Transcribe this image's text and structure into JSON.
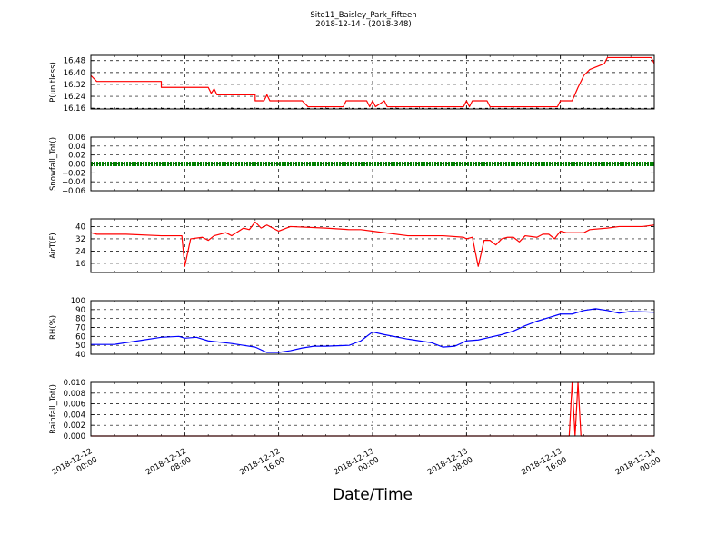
{
  "title": "Site11_Baisley_Park_Fifteen",
  "subtitle": "2018-12-14 - (2018-348)",
  "xlabel": "Date/Time",
  "x_ticks": [
    {
      "line1": "2018-12-12",
      "line2": "00:00",
      "hours": 0
    },
    {
      "line1": "2018-12-12",
      "line2": "08:00",
      "hours": 8
    },
    {
      "line1": "2018-12-12",
      "line2": "16:00",
      "hours": 16
    },
    {
      "line1": "2018-12-13",
      "line2": "00:00",
      "hours": 24
    },
    {
      "line1": "2018-12-13",
      "line2": "08:00",
      "hours": 32
    },
    {
      "line1": "2018-12-13",
      "line2": "16:00",
      "hours": 40
    },
    {
      "line1": "2018-12-14",
      "line2": "00:00",
      "hours": 48
    }
  ],
  "chart_data": [
    {
      "type": "line",
      "ylabel": "P(unitless)",
      "ylim": [
        16.155,
        16.515
      ],
      "yticks": [
        "16.16",
        "16.24",
        "16.32",
        "16.40",
        "16.48"
      ],
      "color": "#ff0000",
      "grid": true,
      "x": [
        "2018-12-12 00:00",
        "2018-12-12 00:30",
        "2018-12-12 01:00",
        "2018-12-12 06:00",
        "2018-12-12 06:00",
        "2018-12-12 10:00",
        "2018-12-12 10:15",
        "2018-12-12 10:30",
        "2018-12-12 10:45",
        "2018-12-12 14:00",
        "2018-12-12 14:00",
        "2018-12-12 14:45",
        "2018-12-12 15:00",
        "2018-12-12 15:15",
        "2018-12-12 18:00",
        "2018-12-12 18:30",
        "2018-12-12 21:30",
        "2018-12-12 21:45",
        "2018-12-12 23:30",
        "2018-12-12 23:45",
        "2018-12-13 00:00",
        "2018-12-13 00:15",
        "2018-12-13 01:00",
        "2018-12-13 01:15",
        "2018-12-13 01:30",
        "2018-12-13 07:45",
        "2018-12-13 08:00",
        "2018-12-13 08:15",
        "2018-12-13 08:30",
        "2018-12-13 09:45",
        "2018-12-13 10:00",
        "2018-12-13 15:45",
        "2018-12-13 16:00",
        "2018-12-13 17:00",
        "2018-12-13 17:30",
        "2018-12-13 18:00",
        "2018-12-13 18:30",
        "2018-12-13 19:45",
        "2018-12-13 20:00",
        "2018-12-13 23:00",
        "2018-12-13 23:45",
        "2018-12-14 00:00"
      ],
      "y": [
        16.38,
        16.34,
        16.34,
        16.34,
        16.3,
        16.3,
        16.26,
        16.29,
        16.25,
        16.25,
        16.21,
        16.21,
        16.25,
        16.21,
        16.21,
        16.17,
        16.17,
        16.21,
        16.21,
        16.17,
        16.21,
        16.17,
        16.21,
        16.17,
        16.17,
        16.17,
        16.21,
        16.17,
        16.21,
        16.21,
        16.17,
        16.17,
        16.21,
        16.21,
        16.3,
        16.38,
        16.42,
        16.46,
        16.5,
        16.5,
        16.5,
        16.46
      ]
    },
    {
      "type": "line",
      "ylabel": "Snowfall_Tot()",
      "ylim": [
        -0.06,
        0.06
      ],
      "yticks": [
        "−0.06",
        "−0.04",
        "−0.02",
        "0.00",
        "0.02",
        "0.04",
        "0.06"
      ],
      "color": "#008000",
      "grid": true,
      "x": [
        "2018-12-12 00:00",
        "2018-12-14 00:00"
      ],
      "y": [
        0.0,
        0.0
      ]
    },
    {
      "type": "line",
      "ylabel": "AirT(F)",
      "ylim": [
        10,
        45
      ],
      "yticks": [
        "16",
        "24",
        "32",
        "40"
      ],
      "color": "#ff0000",
      "grid": true,
      "x": [
        "2018-12-12 00:00",
        "2018-12-12 00:30",
        "2018-12-12 03:00",
        "2018-12-12 06:00",
        "2018-12-12 07:45",
        "2018-12-12 08:00",
        "2018-12-12 08:30",
        "2018-12-12 09:30",
        "2018-12-12 10:00",
        "2018-12-12 10:30",
        "2018-12-12 11:30",
        "2018-12-12 12:00",
        "2018-12-12 13:00",
        "2018-12-12 13:30",
        "2018-12-12 14:00",
        "2018-12-12 14:30",
        "2018-12-12 15:00",
        "2018-12-12 16:00",
        "2018-12-12 17:00",
        "2018-12-12 20:00",
        "2018-12-12 22:00",
        "2018-12-12 23:00",
        "2018-12-13 00:00",
        "2018-12-13 03:00",
        "2018-12-13 06:00",
        "2018-12-13 07:45",
        "2018-12-13 08:00",
        "2018-12-13 08:30",
        "2018-12-13 09:00",
        "2018-12-13 09:30",
        "2018-12-13 10:00",
        "2018-12-13 10:30",
        "2018-12-13 11:00",
        "2018-12-13 11:30",
        "2018-12-13 12:00",
        "2018-12-13 12:30",
        "2018-12-13 13:00",
        "2018-12-13 14:00",
        "2018-12-13 14:30",
        "2018-12-13 15:00",
        "2018-12-13 15:30",
        "2018-12-13 16:00",
        "2018-12-13 16:30",
        "2018-12-13 17:00",
        "2018-12-13 18:00",
        "2018-12-13 18:30",
        "2018-12-13 20:00",
        "2018-12-13 21:00",
        "2018-12-13 22:00",
        "2018-12-13 23:00",
        "2018-12-14 00:00"
      ],
      "y": [
        36,
        35,
        35,
        34,
        34,
        14,
        32,
        33,
        31,
        34,
        36,
        34,
        39,
        38,
        43,
        39,
        41,
        37,
        40,
        39,
        38,
        38,
        37,
        34,
        34,
        33,
        32,
        33,
        14,
        31,
        31,
        28,
        32,
        33,
        33,
        30,
        34,
        33,
        35,
        35,
        32,
        37,
        36,
        36,
        36,
        38,
        39,
        40,
        40,
        40,
        41
      ]
    },
    {
      "type": "line",
      "ylabel": "RH(%)",
      "ylim": [
        40,
        100
      ],
      "yticks": [
        "40",
        "50",
        "60",
        "70",
        "80",
        "90",
        "100"
      ],
      "color": "#0000ff",
      "grid": true,
      "x": [
        "2018-12-12 00:00",
        "2018-12-12 02:00",
        "2018-12-12 04:00",
        "2018-12-12 06:00",
        "2018-12-12 07:30",
        "2018-12-12 08:00",
        "2018-12-12 09:00",
        "2018-12-12 10:00",
        "2018-12-12 12:00",
        "2018-12-12 13:00",
        "2018-12-12 14:00",
        "2018-12-12 15:00",
        "2018-12-12 16:00",
        "2018-12-12 17:00",
        "2018-12-12 18:00",
        "2018-12-12 19:00",
        "2018-12-12 20:00",
        "2018-12-12 22:00",
        "2018-12-12 23:00",
        "2018-12-13 00:00",
        "2018-12-13 01:00",
        "2018-12-13 03:00",
        "2018-12-13 05:00",
        "2018-12-13 06:00",
        "2018-12-13 07:00",
        "2018-12-13 08:00",
        "2018-12-13 09:00",
        "2018-12-13 10:00",
        "2018-12-13 11:00",
        "2018-12-13 12:00",
        "2018-12-13 13:00",
        "2018-12-13 14:00",
        "2018-12-13 15:00",
        "2018-12-13 16:00",
        "2018-12-13 17:00",
        "2018-12-13 18:00",
        "2018-12-13 19:00",
        "2018-12-13 20:00",
        "2018-12-13 21:00",
        "2018-12-13 22:00",
        "2018-12-14 00:00"
      ],
      "y": [
        51,
        51,
        55,
        59,
        60,
        58,
        59,
        55,
        52,
        50,
        48,
        42,
        42,
        44,
        47,
        49,
        49,
        50,
        55,
        65,
        62,
        57,
        53,
        48,
        49,
        55,
        56,
        59,
        62,
        66,
        72,
        77,
        81,
        85,
        85,
        89,
        91,
        89,
        86,
        88,
        87
      ]
    },
    {
      "type": "line",
      "ylabel": "Rainfall_Tot()",
      "ylim": [
        0,
        0.01
      ],
      "yticks": [
        "0.000",
        "0.002",
        "0.004",
        "0.006",
        "0.008",
        "0.010"
      ],
      "color": "#ff0000",
      "grid": true,
      "x": [
        "2018-12-12 00:00",
        "2018-12-13 16:45",
        "2018-12-13 17:00",
        "2018-12-13 17:15",
        "2018-12-13 17:30",
        "2018-12-13 17:45",
        "2018-12-14 00:00"
      ],
      "y": [
        0,
        0,
        0.01,
        0,
        0.01,
        0,
        0
      ]
    }
  ]
}
